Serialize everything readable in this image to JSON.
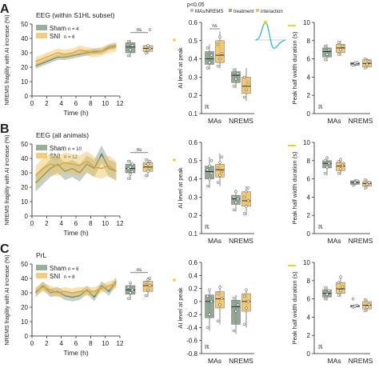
{
  "colors": {
    "sham": "#7f9a82",
    "sni": "#f2bf55",
    "sham_band": "#7f9a82",
    "sni_band": "#f2bf55",
    "axis": "#222222",
    "sig": "#f3d21a",
    "curve": "#3cc0c6"
  },
  "legend_top": {
    "sig_text": "p<0.05",
    "items": [
      "MAs/NREMS",
      "treatment",
      "interaction"
    ]
  },
  "shared": {
    "ts_ylabel": "NREMS fragility with AI increase (%)",
    "ts_xlabel": "Time (h)",
    "ai_ylabel": "AI level at peak",
    "hw_ylabel": "Peak half width duration (s)",
    "states": [
      "MAs",
      "NREMS"
    ],
    "ns": "ns",
    "marker": "ℝ"
  },
  "chart_data": [
    {
      "panel": "A",
      "type": "line",
      "title": "EEG (within S1HL subset)",
      "legend": [
        {
          "label": "Sham",
          "n": "n = 4"
        },
        {
          "label": "SNI",
          "n": "n = 6"
        }
      ],
      "x": [
        0.5,
        1.5,
        2.5,
        3.5,
        4.5,
        5.5,
        6.5,
        7.5,
        8.5,
        9.5,
        10.5,
        11.5
      ],
      "xlim": [
        0,
        12
      ],
      "xticks": [
        0,
        2,
        4,
        6,
        8,
        10,
        12
      ],
      "ylim": [
        0,
        50
      ],
      "yticks": [
        0,
        10,
        20,
        30,
        40,
        50
      ],
      "series": [
        {
          "name": "Sham",
          "values": [
            21,
            23,
            25,
            27,
            27,
            28,
            29,
            30,
            31,
            31,
            34,
            35
          ],
          "sem": [
            2,
            2,
            2,
            2,
            2,
            2,
            2,
            2,
            2,
            2,
            2,
            2
          ]
        },
        {
          "name": "SNI",
          "values": [
            24,
            26,
            28,
            30,
            29,
            30,
            32,
            31,
            30,
            31,
            33,
            34
          ],
          "sem": [
            3,
            3,
            3,
            3,
            3,
            3,
            3,
            3,
            3,
            3,
            3,
            3
          ]
        }
      ],
      "summary": {
        "ylim": [
          0,
          50
        ],
        "boxes": [
          {
            "name": "Sham",
            "q1": 30,
            "med": 34,
            "q3": 37,
            "lo": 27,
            "hi": 39,
            "pts": [
              28,
              32,
              35,
              38
            ]
          },
          {
            "name": "SNI",
            "q1": 31,
            "med": 33,
            "q3": 35,
            "lo": 29,
            "hi": 36,
            "pts": [
              30,
              32,
              33,
              34,
              35,
              46
            ]
          }
        ]
      },
      "ai": {
        "ylim": [
          0.1,
          0.6
        ],
        "yticks": [
          0.1,
          0.2,
          0.3,
          0.4,
          0.5,
          0.6
        ],
        "groups": [
          {
            "state": "MAs",
            "boxes": [
              {
                "name": "Sham",
                "q1": 0.37,
                "med": 0.4,
                "q3": 0.44,
                "lo": 0.34,
                "hi": 0.48,
                "pts": [
                  0.35,
                  0.38,
                  0.42,
                  0.46
                ]
              },
              {
                "name": "SNI",
                "q1": 0.38,
                "med": 0.42,
                "q3": 0.5,
                "lo": 0.35,
                "hi": 0.55,
                "pts": [
                  0.36,
                  0.4,
                  0.43,
                  0.48,
                  0.52
                ]
              }
            ]
          },
          {
            "state": "NREMS",
            "boxes": [
              {
                "name": "Sham",
                "q1": 0.27,
                "med": 0.31,
                "q3": 0.33,
                "lo": 0.24,
                "hi": 0.35,
                "pts": [
                  0.25,
                  0.29,
                  0.32,
                  0.34
                ]
              },
              {
                "name": "SNI",
                "q1": 0.21,
                "med": 0.25,
                "q3": 0.3,
                "lo": 0.17,
                "hi": 0.35,
                "pts": [
                  0.19,
                  0.23,
                  0.27,
                  0.3
                ]
              }
            ]
          }
        ],
        "sig": [
          {
            "from": 0,
            "to": 1,
            "label": "ns"
          }
        ]
      },
      "hw": {
        "ylim": [
          0,
          10
        ],
        "yticks": [
          0,
          2,
          4,
          6,
          8,
          10
        ],
        "groups": [
          {
            "state": "MAs",
            "boxes": [
              {
                "name": "Sham",
                "q1": 6.2,
                "med": 6.8,
                "q3": 7.2,
                "lo": 5.7,
                "hi": 7.6,
                "pts": [
                  5.9,
                  6.5,
                  7.0,
                  7.4
                ]
              },
              {
                "name": "SNI",
                "q1": 6.7,
                "med": 7.2,
                "q3": 7.6,
                "lo": 6.3,
                "hi": 8.0,
                "pts": [
                  6.5,
                  7.0,
                  7.4,
                  7.8
                ]
              }
            ]
          },
          {
            "state": "NREMS",
            "boxes": [
              {
                "name": "Sham",
                "q1": 5.3,
                "med": 5.5,
                "q3": 5.6,
                "lo": 5.2,
                "hi": 5.7,
                "pts": [
                  5.3,
                  5.5,
                  5.6
                ]
              },
              {
                "name": "SNI",
                "q1": 5.1,
                "med": 5.5,
                "q3": 5.9,
                "lo": 4.9,
                "hi": 6.1,
                "pts": [
                  5.0,
                  5.4,
                  5.7,
                  6.0
                ]
              }
            ]
          }
        ]
      }
    },
    {
      "panel": "B",
      "type": "line",
      "title": "EEG (all animals)",
      "legend": [
        {
          "label": "Sham",
          "n": "n = 10"
        },
        {
          "label": "SNI",
          "n": "n = 12"
        }
      ],
      "x": [
        0.5,
        1.5,
        2.5,
        3.5,
        4.5,
        5.5,
        6.5,
        7.5,
        8.5,
        9.5,
        10.5,
        11.5
      ],
      "xlim": [
        0,
        12
      ],
      "xticks": [
        0,
        2,
        4,
        6,
        8,
        10,
        12
      ],
      "ylim": [
        0,
        50
      ],
      "yticks": [
        0,
        10,
        20,
        30,
        40,
        50
      ],
      "series": [
        {
          "name": "Sham",
          "values": [
            23,
            28,
            33,
            36,
            31,
            33,
            30,
            36,
            33,
            43,
            33,
            31
          ],
          "sem": [
            6,
            6,
            6,
            6,
            6,
            6,
            6,
            6,
            6,
            6,
            6,
            6
          ]
        },
        {
          "name": "SNI",
          "values": [
            28,
            33,
            36,
            35,
            37,
            36,
            35,
            38,
            34,
            33,
            35,
            31
          ],
          "sem": [
            7,
            7,
            7,
            7,
            7,
            7,
            7,
            7,
            7,
            7,
            7,
            7
          ]
        }
      ],
      "summary": {
        "ylim": [
          0,
          50
        ],
        "boxes": [
          {
            "name": "Sham",
            "q1": 30,
            "med": 33,
            "q3": 36,
            "lo": 25,
            "hi": 39,
            "pts": [
              26,
              29,
              31,
              33,
              34,
              36,
              38
            ]
          },
          {
            "name": "SNI",
            "q1": 31,
            "med": 34,
            "q3": 37,
            "lo": 27,
            "hi": 40,
            "pts": [
              28,
              31,
              33,
              35,
              36,
              38,
              39
            ]
          }
        ]
      },
      "ai": {
        "ylim": [
          0.1,
          0.6
        ],
        "yticks": [
          0.1,
          0.2,
          0.3,
          0.4,
          0.5,
          0.6
        ],
        "groups": [
          {
            "state": "MAs",
            "boxes": [
              {
                "name": "Sham",
                "q1": 0.4,
                "med": 0.44,
                "q3": 0.47,
                "lo": 0.35,
                "hi": 0.52,
                "pts": [
                  0.36,
                  0.4,
                  0.43,
                  0.45,
                  0.47,
                  0.5
                ]
              },
              {
                "name": "SNI",
                "q1": 0.41,
                "med": 0.45,
                "q3": 0.48,
                "lo": 0.36,
                "hi": 0.54,
                "pts": [
                  0.38,
                  0.42,
                  0.44,
                  0.46,
                  0.49,
                  0.52
                ]
              }
            ]
          },
          {
            "state": "NREMS",
            "boxes": [
              {
                "name": "Sham",
                "q1": 0.26,
                "med": 0.29,
                "q3": 0.31,
                "lo": 0.22,
                "hi": 0.34,
                "pts": [
                  0.23,
                  0.27,
                  0.29,
                  0.3,
                  0.33
                ]
              },
              {
                "name": "SNI",
                "q1": 0.25,
                "med": 0.28,
                "q3": 0.33,
                "lo": 0.2,
                "hi": 0.36,
                "pts": [
                  0.21,
                  0.25,
                  0.28,
                  0.3,
                  0.33,
                  0.35
                ]
              }
            ]
          }
        ],
        "sig": []
      },
      "hw": {
        "ylim": [
          0,
          10
        ],
        "yticks": [
          0,
          2,
          4,
          6,
          8,
          10
        ],
        "groups": [
          {
            "state": "MAs",
            "boxes": [
              {
                "name": "Sham",
                "q1": 7.2,
                "med": 7.7,
                "q3": 8.0,
                "lo": 6.4,
                "hi": 8.5,
                "pts": [
                  6.6,
                  7.3,
                  7.7,
                  8.0,
                  8.3
                ]
              },
              {
                "name": "SNI",
                "q1": 6.9,
                "med": 7.4,
                "q3": 7.8,
                "lo": 6.4,
                "hi": 8.3,
                "pts": [
                  6.6,
                  7.1,
                  7.5,
                  7.9,
                  8.1
                ]
              }
            ]
          },
          {
            "state": "NREMS",
            "boxes": [
              {
                "name": "Sham",
                "q1": 5.4,
                "med": 5.6,
                "q3": 5.8,
                "lo": 5.2,
                "hi": 6.0,
                "pts": [
                  5.3,
                  5.6,
                  5.8
                ]
              },
              {
                "name": "SNI",
                "q1": 5.2,
                "med": 5.5,
                "q3": 5.7,
                "lo": 4.9,
                "hi": 6.0,
                "pts": [
                  5.0,
                  5.4,
                  5.6,
                  5.9
                ]
              }
            ]
          }
        ]
      }
    },
    {
      "panel": "C",
      "type": "line",
      "title": "PrL",
      "legend": [
        {
          "label": "Sham",
          "n": "n = 6"
        },
        {
          "label": "SNI",
          "n": "n = 8"
        }
      ],
      "x": [
        0.5,
        1.5,
        2.5,
        3.5,
        4.5,
        5.5,
        6.5,
        7.5,
        8.5,
        9.5,
        10.5,
        11.5
      ],
      "xlim": [
        0,
        12
      ],
      "xticks": [
        0,
        2,
        4,
        6,
        8,
        10,
        12
      ],
      "ylim": [
        0,
        50
      ],
      "yticks": [
        0,
        10,
        20,
        30,
        40,
        50
      ],
      "series": [
        {
          "name": "Sham",
          "values": [
            30,
            35,
            30,
            31,
            28,
            27,
            28,
            32,
            27,
            35,
            31,
            38
          ],
          "sem": [
            3,
            3,
            3,
            3,
            3,
            3,
            3,
            3,
            3,
            3,
            3,
            3
          ]
        },
        {
          "name": "SNI",
          "values": [
            31,
            34,
            32,
            30,
            31,
            30,
            31,
            31,
            31,
            33,
            35,
            36
          ],
          "sem": [
            3,
            3,
            3,
            3,
            3,
            3,
            3,
            3,
            3,
            3,
            3,
            3
          ]
        }
      ],
      "summary": {
        "ylim": [
          0,
          50
        ],
        "boxes": [
          {
            "name": "Sham",
            "q1": 29,
            "med": 32,
            "q3": 35,
            "lo": 25,
            "hi": 38,
            "pts": [
              26,
              30,
              32,
              34,
              37
            ]
          },
          {
            "name": "SNI",
            "q1": 31,
            "med": 35,
            "q3": 38,
            "lo": 27,
            "hi": 41,
            "pts": [
              28,
              32,
              35,
              37,
              39,
              40
            ]
          }
        ]
      },
      "ai": {
        "ylim": [
          -0.8,
          0.6
        ],
        "yticks": [
          -0.8,
          -0.6,
          -0.4,
          -0.2,
          0.0,
          0.2,
          0.4,
          0.6
        ],
        "groups": [
          {
            "state": "MAs",
            "boxes": [
              {
                "name": "Sham",
                "q1": -0.25,
                "med": 0.0,
                "q3": 0.1,
                "lo": -0.45,
                "hi": 0.2,
                "pts": [
                  -0.4,
                  -0.2,
                  0.0,
                  0.08,
                  0.18
                ]
              },
              {
                "name": "SNI",
                "q1": -0.1,
                "med": 0.04,
                "q3": 0.15,
                "lo": -0.35,
                "hi": 0.25,
                "pts": [
                  -0.3,
                  -0.05,
                  0.05,
                  0.12,
                  0.22
                ]
              }
            ]
          },
          {
            "state": "NREMS",
            "boxes": [
              {
                "name": "Sham",
                "q1": -0.35,
                "med": -0.08,
                "q3": 0.02,
                "lo": -0.5,
                "hi": 0.1,
                "pts": [
                  -0.45,
                  -0.15,
                  -0.05,
                  0.05
                ]
              },
              {
                "name": "SNI",
                "q1": -0.15,
                "med": 0.0,
                "q3": 0.12,
                "lo": -0.4,
                "hi": 0.2,
                "pts": [
                  -0.35,
                  -0.1,
                  0.0,
                  0.08,
                  0.18
                ]
              }
            ]
          }
        ],
        "sig": []
      },
      "hw": {
        "ylim": [
          0,
          10
        ],
        "yticks": [
          0,
          2,
          4,
          6,
          8,
          10
        ],
        "groups": [
          {
            "state": "MAs",
            "boxes": [
              {
                "name": "Sham",
                "q1": 6.2,
                "med": 6.6,
                "q3": 7.0,
                "lo": 5.8,
                "hi": 7.4,
                "pts": [
                  6.0,
                  6.5,
                  6.9,
                  7.2
                ]
              },
              {
                "name": "SNI",
                "q1": 6.6,
                "med": 7.1,
                "q3": 7.8,
                "lo": 6.2,
                "hi": 8.6,
                "pts": [
                  6.4,
                  6.9,
                  7.3,
                  7.8,
                  8.4
                ]
              }
            ]
          },
          {
            "state": "NREMS",
            "boxes": [
              {
                "name": "Sham",
                "q1": 5.1,
                "med": 5.2,
                "q3": 5.3,
                "lo": 5.0,
                "hi": 5.4,
                "pts": [
                  5.1,
                  5.2,
                  5.3,
                  6.0
                ]
              },
              {
                "name": "SNI",
                "q1": 4.9,
                "med": 5.3,
                "q3": 5.7,
                "lo": 4.6,
                "hi": 6.0,
                "pts": [
                  4.7,
                  5.1,
                  5.4,
                  5.9
                ]
              }
            ]
          }
        ]
      }
    }
  ]
}
